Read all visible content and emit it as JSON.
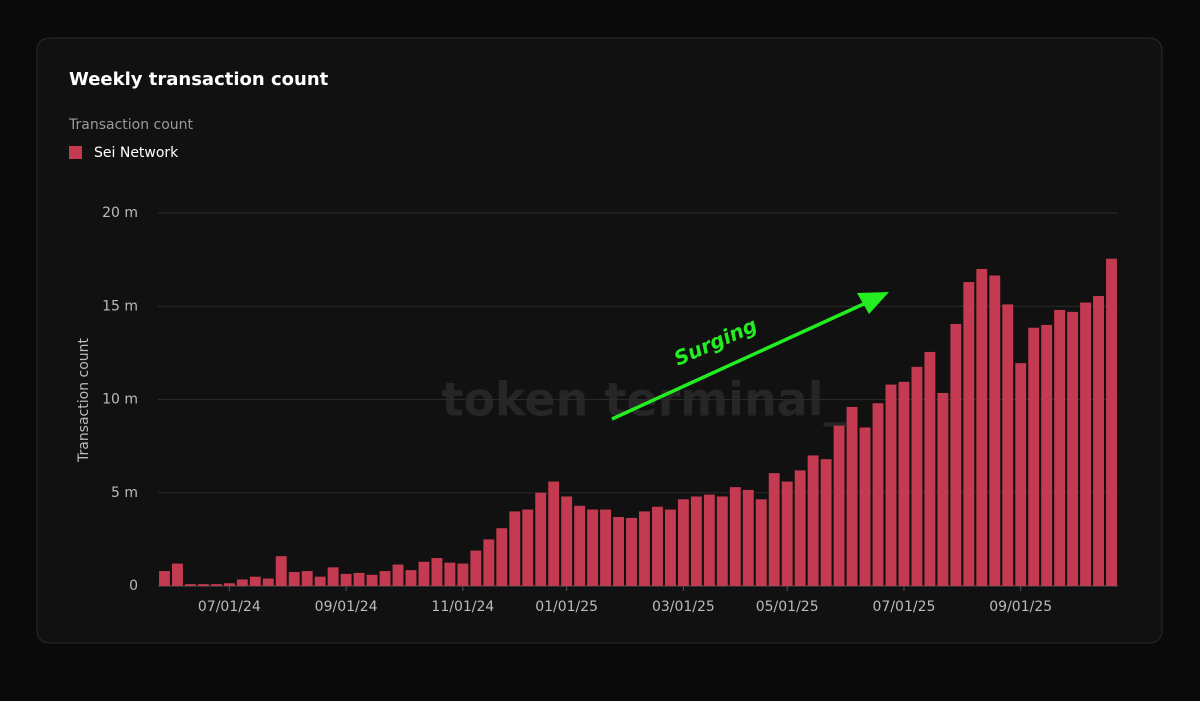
{
  "chart_data": {
    "type": "bar",
    "title": "Weekly transaction count",
    "subtitle": "Transaction count",
    "y_label": "Transaction count",
    "watermark": "token terminal_",
    "annotation": "Surging",
    "legend": "top-left",
    "grid": true,
    "categories": [
      null,
      null,
      null,
      null,
      null,
      "07/01/24",
      null,
      null,
      null,
      null,
      null,
      null,
      null,
      null,
      "09/01/24",
      null,
      null,
      null,
      null,
      null,
      null,
      null,
      null,
      "11/01/24",
      null,
      null,
      null,
      null,
      null,
      null,
      null,
      "01/01/25",
      null,
      null,
      null,
      null,
      null,
      null,
      null,
      null,
      "03/01/25",
      null,
      null,
      null,
      null,
      null,
      null,
      null,
      "05/01/25",
      null,
      null,
      null,
      null,
      null,
      null,
      null,
      null,
      "07/01/25",
      null,
      null,
      null,
      null,
      null,
      null,
      null,
      null,
      "09/01/25",
      null,
      null,
      null,
      null,
      null,
      null,
      null
    ],
    "series": [
      {
        "name": "Sei Network",
        "color": "#c43a50",
        "values": [
          0.8,
          1.2,
          0.1,
          0.1,
          0.1,
          0.15,
          0.35,
          0.5,
          0.4,
          1.6,
          0.75,
          0.8,
          0.5,
          1.0,
          0.65,
          0.7,
          0.6,
          0.8,
          1.15,
          0.85,
          1.3,
          1.5,
          1.25,
          1.2,
          1.9,
          2.5,
          3.1,
          4.0,
          4.1,
          5.0,
          5.6,
          4.8,
          4.3,
          4.1,
          4.1,
          3.7,
          3.65,
          4.0,
          4.25,
          4.1,
          4.65,
          4.8,
          4.9,
          4.8,
          5.3,
          5.15,
          4.65,
          6.05,
          5.6,
          6.2,
          7.0,
          6.8,
          8.6,
          9.6,
          8.5,
          9.8,
          10.8,
          10.95,
          11.75,
          12.55,
          10.35,
          14.05,
          16.3,
          17.0,
          16.65,
          15.1,
          11.95,
          13.85,
          14.0,
          14.8,
          14.7,
          15.2,
          15.55,
          17.55
        ]
      }
    ],
    "ylim": [
      0,
      20
    ],
    "yticks": [
      0,
      {
        "value": 5,
        "label": "5 m"
      },
      {
        "value": 10,
        "label": "10 m"
      },
      {
        "value": 15,
        "label": "15 m"
      },
      {
        "value": 20,
        "label": "20 m"
      }
    ]
  }
}
